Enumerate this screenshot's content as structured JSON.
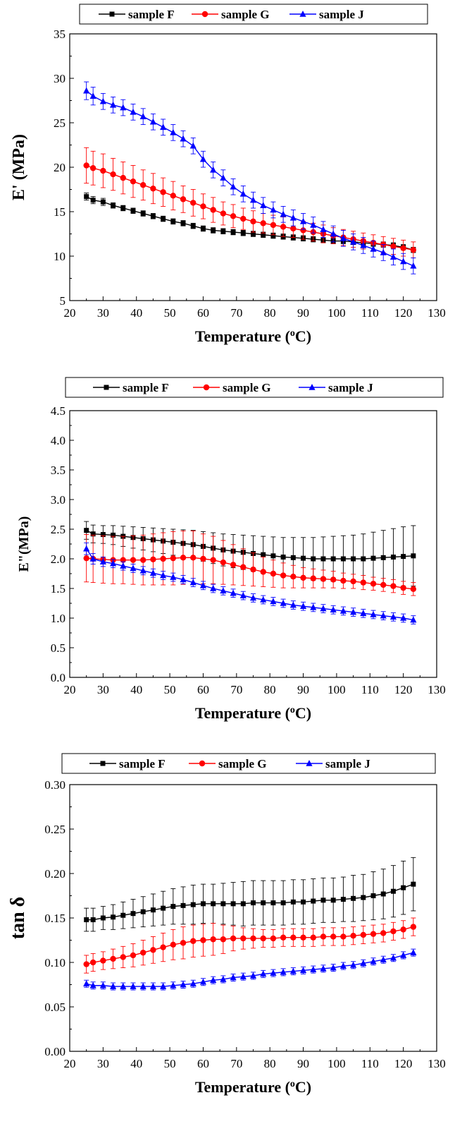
{
  "chart_data": [
    {
      "type": "line",
      "xlabel": "Temperature (",
      "xlabel_sup": "o",
      "xlabel_tail": "C)",
      "ylabel": "E' (MPa)",
      "xlim": [
        20,
        130
      ],
      "ylim": [
        5,
        35
      ],
      "xticks": [
        "20",
        "30",
        "40",
        "50",
        "60",
        "70",
        "80",
        "90",
        "100",
        "110",
        "120",
        "130"
      ],
      "yticks": [
        "5",
        "10",
        "15",
        "20",
        "25",
        "30",
        "35"
      ],
      "legend_position": "top",
      "x": [
        25,
        27,
        30,
        33,
        36,
        39,
        42,
        45,
        48,
        51,
        54,
        57,
        60,
        63,
        66,
        69,
        72,
        75,
        78,
        81,
        84,
        87,
        90,
        93,
        96,
        99,
        102,
        105,
        108,
        111,
        114,
        117,
        120,
        123
      ],
      "series": [
        {
          "name": "sample  F",
          "color": "#000000",
          "marker": "square",
          "values": [
            16.7,
            16.3,
            16.1,
            15.7,
            15.4,
            15.1,
            14.8,
            14.5,
            14.2,
            13.9,
            13.7,
            13.4,
            13.1,
            12.9,
            12.8,
            12.7,
            12.6,
            12.5,
            12.4,
            12.3,
            12.2,
            12.1,
            12.0,
            11.9,
            11.8,
            11.7,
            11.7,
            11.6,
            11.5,
            11.4,
            11.3,
            11.2,
            11.0,
            10.7
          ],
          "errors": [
            0.4,
            0.4,
            0.4,
            0.3,
            0.3,
            0.3,
            0.3,
            0.3,
            0.3,
            0.3,
            0.3,
            0.3,
            0.3,
            0.3,
            0.3,
            0.3,
            0.3,
            0.3,
            0.3,
            0.3,
            0.3,
            0.3,
            0.3,
            0.3,
            0.3,
            0.3,
            0.3,
            0.3,
            0.3,
            0.3,
            0.3,
            0.3,
            0.3,
            0.3
          ]
        },
        {
          "name": "sample G",
          "color": "#ff0000",
          "marker": "circle",
          "values": [
            20.2,
            19.9,
            19.6,
            19.2,
            18.8,
            18.4,
            18.0,
            17.6,
            17.2,
            16.8,
            16.4,
            16.0,
            15.6,
            15.2,
            14.8,
            14.5,
            14.2,
            13.9,
            13.7,
            13.5,
            13.3,
            13.1,
            12.9,
            12.7,
            12.5,
            12.3,
            12.1,
            11.9,
            11.7,
            11.5,
            11.3,
            11.1,
            10.9,
            10.7
          ],
          "errors": [
            2.0,
            1.9,
            1.9,
            1.8,
            1.8,
            1.8,
            1.7,
            1.7,
            1.6,
            1.6,
            1.5,
            1.5,
            1.4,
            1.4,
            1.3,
            1.3,
            1.2,
            1.2,
            1.1,
            1.1,
            1.1,
            1.0,
            1.0,
            1.0,
            1.0,
            0.9,
            0.9,
            0.9,
            0.9,
            0.9,
            0.9,
            0.9,
            0.9,
            0.9
          ]
        },
        {
          "name": "sample J",
          "color": "#0000ff",
          "marker": "triangle",
          "values": [
            28.6,
            28.0,
            27.4,
            27.0,
            26.7,
            26.2,
            25.7,
            25.1,
            24.5,
            23.9,
            23.2,
            22.4,
            20.9,
            19.7,
            18.8,
            17.8,
            17.0,
            16.3,
            15.7,
            15.2,
            14.7,
            14.3,
            13.9,
            13.5,
            13.0,
            12.5,
            12.0,
            11.6,
            11.2,
            10.8,
            10.4,
            9.9,
            9.4,
            8.9
          ],
          "errors": [
            1.0,
            1.0,
            0.9,
            0.9,
            0.9,
            0.9,
            0.9,
            0.9,
            0.9,
            0.9,
            0.9,
            0.9,
            0.9,
            0.9,
            0.9,
            0.9,
            0.9,
            0.9,
            0.9,
            0.9,
            0.9,
            0.9,
            0.9,
            0.9,
            0.9,
            0.9,
            0.9,
            0.9,
            0.9,
            0.9,
            0.9,
            0.9,
            0.9,
            0.9
          ]
        }
      ]
    },
    {
      "type": "line",
      "xlabel": "Temperature (",
      "xlabel_sup": "o",
      "xlabel_tail": "C)",
      "ylabel": "E\"(MPa)",
      "xlim": [
        20,
        130
      ],
      "ylim": [
        0,
        4.5
      ],
      "xticks": [
        "20",
        "30",
        "40",
        "50",
        "60",
        "70",
        "80",
        "90",
        "100",
        "110",
        "120",
        "130"
      ],
      "yticks": [
        "0.0",
        "0.5",
        "1.0",
        "1.5",
        "2.0",
        "2.5",
        "3.0",
        "3.5",
        "4.0",
        "4.5"
      ],
      "legend_position": "top",
      "x": [
        25,
        27,
        30,
        33,
        36,
        39,
        42,
        45,
        48,
        51,
        54,
        57,
        60,
        63,
        66,
        69,
        72,
        75,
        78,
        81,
        84,
        87,
        90,
        93,
        96,
        99,
        102,
        105,
        108,
        111,
        114,
        117,
        120,
        123
      ],
      "series": [
        {
          "name": "sample F",
          "color": "#000000",
          "marker": "square",
          "values": [
            2.48,
            2.42,
            2.41,
            2.4,
            2.38,
            2.36,
            2.34,
            2.32,
            2.3,
            2.28,
            2.26,
            2.24,
            2.21,
            2.18,
            2.15,
            2.13,
            2.11,
            2.09,
            2.07,
            2.05,
            2.03,
            2.02,
            2.01,
            2.0,
            2.0,
            2.0,
            2.0,
            2.0,
            2.0,
            2.01,
            2.02,
            2.03,
            2.04,
            2.05
          ],
          "errors": [
            0.15,
            0.15,
            0.15,
            0.16,
            0.17,
            0.18,
            0.19,
            0.2,
            0.21,
            0.22,
            0.23,
            0.24,
            0.25,
            0.26,
            0.27,
            0.28,
            0.29,
            0.3,
            0.31,
            0.32,
            0.33,
            0.34,
            0.35,
            0.36,
            0.37,
            0.38,
            0.39,
            0.4,
            0.42,
            0.44,
            0.46,
            0.48,
            0.5,
            0.51
          ]
        },
        {
          "name": "sample G",
          "color": "#ff0000",
          "marker": "circle",
          "values": [
            2.01,
            2.0,
            1.99,
            1.98,
            1.98,
            1.98,
            1.98,
            1.99,
            2.0,
            2.01,
            2.02,
            2.02,
            2.0,
            1.98,
            1.94,
            1.9,
            1.86,
            1.82,
            1.78,
            1.75,
            1.72,
            1.7,
            1.68,
            1.67,
            1.66,
            1.65,
            1.63,
            1.62,
            1.6,
            1.58,
            1.56,
            1.54,
            1.51,
            1.49
          ],
          "errors": [
            0.4,
            0.4,
            0.4,
            0.4,
            0.4,
            0.41,
            0.42,
            0.43,
            0.44,
            0.45,
            0.45,
            0.45,
            0.42,
            0.4,
            0.37,
            0.34,
            0.31,
            0.28,
            0.25,
            0.23,
            0.21,
            0.19,
            0.17,
            0.16,
            0.15,
            0.14,
            0.13,
            0.12,
            0.12,
            0.11,
            0.11,
            0.11,
            0.11,
            0.11
          ]
        },
        {
          "name": "sample J",
          "color": "#0000ff",
          "marker": "triangle",
          "values": [
            2.17,
            2.0,
            1.95,
            1.92,
            1.88,
            1.84,
            1.8,
            1.76,
            1.72,
            1.69,
            1.65,
            1.6,
            1.55,
            1.5,
            1.46,
            1.42,
            1.38,
            1.34,
            1.31,
            1.28,
            1.25,
            1.22,
            1.2,
            1.18,
            1.16,
            1.14,
            1.12,
            1.1,
            1.08,
            1.06,
            1.04,
            1.02,
            1.0,
            0.97
          ],
          "errors": [
            0.1,
            0.09,
            0.08,
            0.07,
            0.07,
            0.07,
            0.07,
            0.07,
            0.07,
            0.07,
            0.07,
            0.07,
            0.07,
            0.07,
            0.07,
            0.07,
            0.07,
            0.07,
            0.07,
            0.07,
            0.07,
            0.07,
            0.07,
            0.07,
            0.07,
            0.07,
            0.07,
            0.07,
            0.07,
            0.07,
            0.07,
            0.07,
            0.07,
            0.07
          ]
        }
      ]
    },
    {
      "type": "line",
      "xlabel": "Temperature (",
      "xlabel_sup": "o",
      "xlabel_tail": "C)",
      "ylabel": "tan δ",
      "xlim": [
        20,
        130
      ],
      "ylim": [
        0,
        0.3
      ],
      "xticks": [
        "20",
        "30",
        "40",
        "50",
        "60",
        "70",
        "80",
        "90",
        "100",
        "110",
        "120",
        "130"
      ],
      "yticks": [
        "0.00",
        "0.05",
        "0.10",
        "0.15",
        "0.20",
        "0.25",
        "0.30"
      ],
      "legend_position": "top",
      "x": [
        25,
        27,
        30,
        33,
        36,
        39,
        42,
        45,
        48,
        51,
        54,
        57,
        60,
        63,
        66,
        69,
        72,
        75,
        78,
        81,
        84,
        87,
        90,
        93,
        96,
        99,
        102,
        105,
        108,
        111,
        114,
        117,
        120,
        123
      ],
      "series": [
        {
          "name": "sample F",
          "color": "#000000",
          "marker": "square",
          "values": [
            0.148,
            0.148,
            0.15,
            0.151,
            0.153,
            0.155,
            0.157,
            0.159,
            0.161,
            0.163,
            0.164,
            0.165,
            0.166,
            0.166,
            0.166,
            0.166,
            0.166,
            0.167,
            0.167,
            0.167,
            0.167,
            0.168,
            0.168,
            0.169,
            0.17,
            0.17,
            0.171,
            0.172,
            0.173,
            0.175,
            0.177,
            0.18,
            0.184,
            0.188
          ],
          "errors": [
            0.013,
            0.013,
            0.013,
            0.014,
            0.015,
            0.016,
            0.017,
            0.018,
            0.019,
            0.02,
            0.021,
            0.022,
            0.022,
            0.022,
            0.023,
            0.024,
            0.025,
            0.025,
            0.025,
            0.025,
            0.025,
            0.025,
            0.025,
            0.025,
            0.025,
            0.025,
            0.025,
            0.026,
            0.026,
            0.027,
            0.028,
            0.029,
            0.03,
            0.03
          ]
        },
        {
          "name": "sample G",
          "color": "#ff0000",
          "marker": "circle",
          "values": [
            0.098,
            0.1,
            0.102,
            0.104,
            0.106,
            0.108,
            0.111,
            0.114,
            0.117,
            0.12,
            0.122,
            0.124,
            0.125,
            0.126,
            0.126,
            0.127,
            0.127,
            0.127,
            0.127,
            0.127,
            0.128,
            0.128,
            0.128,
            0.128,
            0.129,
            0.129,
            0.129,
            0.13,
            0.131,
            0.132,
            0.133,
            0.135,
            0.137,
            0.14
          ],
          "errors": [
            0.01,
            0.01,
            0.01,
            0.011,
            0.012,
            0.013,
            0.014,
            0.015,
            0.016,
            0.017,
            0.018,
            0.018,
            0.018,
            0.018,
            0.016,
            0.014,
            0.012,
            0.011,
            0.01,
            0.01,
            0.01,
            0.01,
            0.01,
            0.01,
            0.01,
            0.01,
            0.01,
            0.01,
            0.01,
            0.01,
            0.01,
            0.01,
            0.01,
            0.01
          ]
        },
        {
          "name": "sample J",
          "color": "#0000ff",
          "marker": "triangle",
          "values": [
            0.076,
            0.074,
            0.074,
            0.073,
            0.073,
            0.073,
            0.073,
            0.073,
            0.073,
            0.074,
            0.075,
            0.076,
            0.078,
            0.08,
            0.081,
            0.083,
            0.084,
            0.085,
            0.087,
            0.088,
            0.089,
            0.09,
            0.091,
            0.092,
            0.093,
            0.094,
            0.096,
            0.097,
            0.099,
            0.101,
            0.103,
            0.105,
            0.108,
            0.111
          ],
          "errors": [
            0.004,
            0.004,
            0.004,
            0.004,
            0.004,
            0.004,
            0.004,
            0.004,
            0.004,
            0.004,
            0.004,
            0.004,
            0.004,
            0.004,
            0.004,
            0.004,
            0.004,
            0.004,
            0.004,
            0.004,
            0.004,
            0.004,
            0.004,
            0.004,
            0.004,
            0.004,
            0.004,
            0.004,
            0.004,
            0.004,
            0.004,
            0.004,
            0.004,
            0.004
          ]
        }
      ]
    }
  ]
}
